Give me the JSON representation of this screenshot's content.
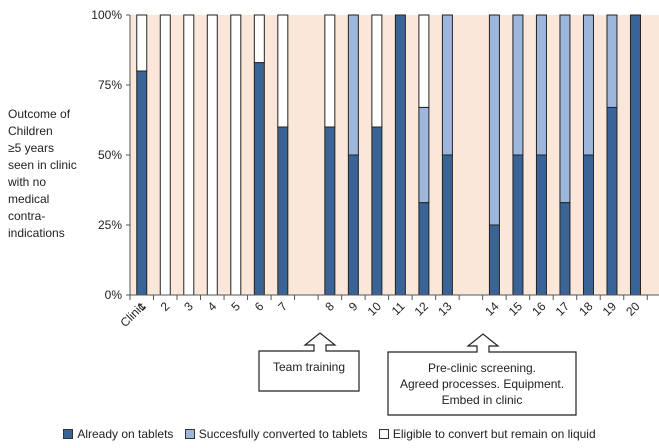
{
  "colors": {
    "already": "#3b6496",
    "converted": "#9db7dc",
    "remain": "#ffffff",
    "background": "#fbe7d9",
    "outline": "#222222"
  },
  "chart_data": {
    "type": "bar",
    "stacked": true,
    "ylabel_lines": [
      "Outcome of",
      "Children",
      "≥5 years",
      "seen in clinic",
      "with no",
      "medical",
      "contra-",
      "indications"
    ],
    "y_ticks": [
      "0%",
      "25%",
      "50%",
      "75%",
      "100%"
    ],
    "ylim": [
      0,
      100
    ],
    "x_axis_label": "Clinic",
    "categories": [
      "1",
      "2",
      "3",
      "4",
      "5",
      "6",
      "7",
      "8",
      "9",
      "10",
      "11",
      "12",
      "13",
      "14",
      "15",
      "16",
      "17",
      "18",
      "19",
      "20"
    ],
    "slot_positions": [
      1,
      2,
      3,
      4,
      5,
      6,
      7,
      9,
      10,
      11,
      12,
      13,
      14,
      16,
      17,
      18,
      19,
      20,
      21,
      22
    ],
    "series": [
      {
        "name": "Already on tablets",
        "color_key": "already",
        "values": [
          80,
          0,
          0,
          0,
          0,
          83,
          60,
          60,
          50,
          60,
          100,
          33,
          50,
          25,
          50,
          50,
          33,
          50,
          67,
          100
        ]
      },
      {
        "name": "Succesfully converted to tablets",
        "color_key": "converted",
        "values": [
          0,
          0,
          0,
          0,
          0,
          0,
          0,
          0,
          50,
          0,
          0,
          34,
          50,
          75,
          50,
          50,
          67,
          50,
          33,
          0
        ]
      },
      {
        "name": "Eligible to convert but remain on liquid",
        "color_key": "remain",
        "values": [
          20,
          100,
          100,
          100,
          100,
          17,
          40,
          40,
          0,
          40,
          0,
          33,
          0,
          0,
          0,
          0,
          0,
          0,
          0,
          0
        ]
      }
    ],
    "grid": false,
    "legend_position": "bottom"
  },
  "callouts": {
    "team_training": "Team training",
    "preclinic_lines": [
      "Pre-clinic screening.",
      "Agreed processes. Equipment.",
      "Embed in clinic"
    ]
  }
}
